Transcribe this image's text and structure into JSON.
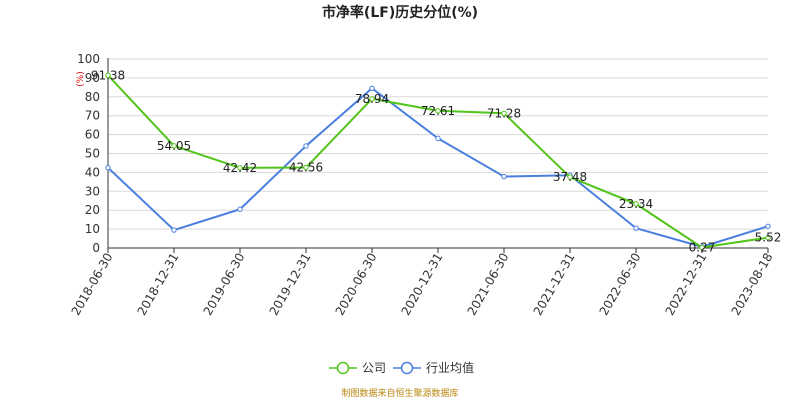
{
  "chart_data": {
    "type": "line",
    "title": "市净率(LF)历史分位(%)",
    "unit_label": "(%)",
    "categories": [
      "2018-06-30",
      "2018-12-31",
      "2019-06-30",
      "2019-12-31",
      "2020-06-30",
      "2020-12-31",
      "2021-06-30",
      "2021-12-31",
      "2022-06-30",
      "2022-12-31",
      "2023-08-18"
    ],
    "ylim": [
      0,
      100
    ],
    "yticks": [
      "0",
      "10",
      "20",
      "30",
      "40",
      "50",
      "60",
      "70",
      "80",
      "90",
      "100"
    ],
    "grid": true,
    "legend_position": "bottom-center",
    "series": [
      {
        "name": "公司",
        "color": "#52c41a",
        "values": [
          91.38,
          54.05,
          42.42,
          42.56,
          78.94,
          72.61,
          71.28,
          37.48,
          23.34,
          0.27,
          5.52
        ],
        "labels": [
          "91.38",
          "54.05",
          "42.42",
          "42.56",
          "78.94",
          "72.61",
          "71.28",
          "37.48",
          "23.34",
          "0.27",
          "5.52"
        ]
      },
      {
        "name": "行业均值",
        "color": "#4a7fe0",
        "values": [
          42.5,
          9.5,
          20.5,
          54.0,
          84.5,
          58.0,
          37.8,
          38.5,
          10.5,
          0.6,
          11.5
        ]
      }
    ]
  },
  "footer": {
    "source": "制图数据来自恒生聚源数据库"
  }
}
